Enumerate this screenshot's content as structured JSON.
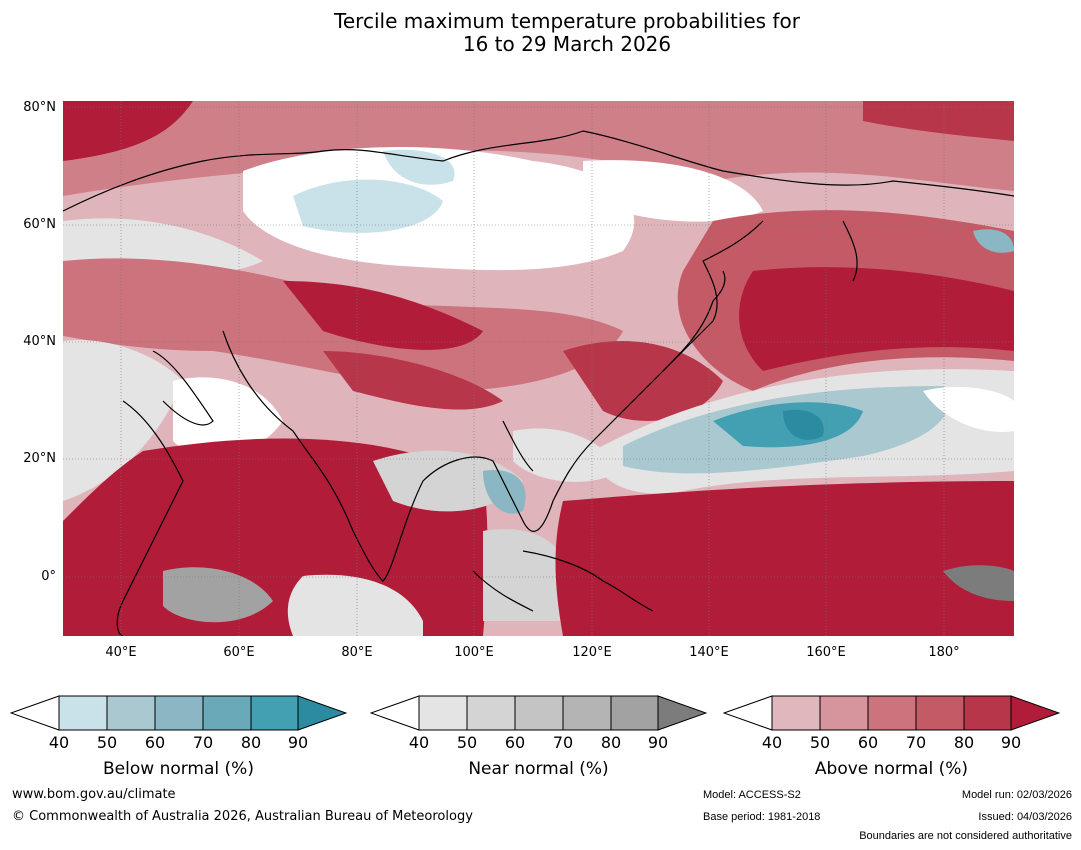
{
  "title_line1": "Tercile maximum temperature probabilities for",
  "title_line2": "16 to 29 March 2026",
  "lat_labels": [
    "80°N",
    "60°N",
    "40°N",
    "20°N",
    "0°"
  ],
  "lon_labels": [
    "40°E",
    "60°E",
    "80°E",
    "100°E",
    "120°E",
    "140°E",
    "160°E",
    "180°"
  ],
  "legends": {
    "below": {
      "caption": "Below normal (%)",
      "ticks": [
        "40",
        "50",
        "60",
        "70",
        "80",
        "90"
      ],
      "colors": [
        "#c9e1e8",
        "#a9c8cf",
        "#8ab7c3",
        "#6aaab8",
        "#43a0b2",
        "#2a8ba1"
      ]
    },
    "near": {
      "caption": "Near normal (%)",
      "ticks": [
        "40",
        "50",
        "60",
        "70",
        "80",
        "90"
      ],
      "colors": [
        "#e4e4e4",
        "#d4d4d4",
        "#c4c4c4",
        "#b4b4b4",
        "#a2a2a2",
        "#7c7c7c"
      ]
    },
    "above": {
      "caption": "Above normal (%)",
      "ticks": [
        "40",
        "50",
        "60",
        "70",
        "80",
        "90"
      ],
      "colors": [
        "#e0b7bd",
        "#d6959c",
        "#cc737e",
        "#c45a66",
        "#b8364a",
        "#b11c38"
      ]
    }
  },
  "footer": {
    "url": "www.bom.gov.au/climate",
    "copyright": "© Commonwealth of Australia 2026, Australian Bureau of Meteorology",
    "model": "Model: ACCESS-S2",
    "base_period": "Base period: 1981-2018",
    "model_run": "Model run: 02/03/2026",
    "issued": "Issued: 04/03/2026",
    "disclaimer": "Boundaries are not considered authoritative"
  }
}
